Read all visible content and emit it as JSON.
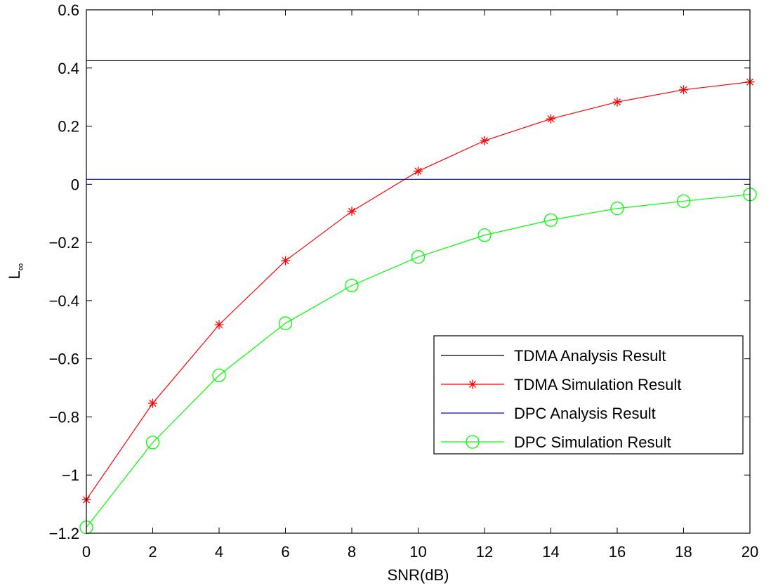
{
  "chart_data": {
    "type": "line",
    "title": "",
    "xlabel": "SNR(dB)",
    "ylabel": "L",
    "ylabel_subscript": "∞",
    "xlim": [
      0,
      20
    ],
    "ylim": [
      -1.2,
      0.6
    ],
    "xticks": [
      0,
      2,
      4,
      6,
      8,
      10,
      12,
      14,
      16,
      18,
      20
    ],
    "xtick_labels": [
      "0",
      "2",
      "4",
      "6",
      "8",
      "10",
      "12",
      "14",
      "16",
      "18",
      "20"
    ],
    "yticks": [
      -1.2,
      -1,
      -0.8,
      -0.6,
      -0.4,
      -0.2,
      0,
      0.2,
      0.4,
      0.6
    ],
    "ytick_labels": [
      "−1.2",
      "−1",
      "−0.8",
      "−0.6",
      "−0.4",
      "−0.2",
      "0",
      "0.2",
      "0.4",
      "0.6"
    ],
    "grid": false,
    "legend_position": "lower-right",
    "x": [
      0,
      2,
      4,
      6,
      8,
      10,
      12,
      14,
      16,
      18,
      20
    ],
    "series": [
      {
        "name": "TDMA Analysis Result",
        "color": "#000000",
        "marker": "none",
        "values": [
          0.425,
          0.425,
          0.425,
          0.425,
          0.425,
          0.425,
          0.425,
          0.425,
          0.425,
          0.425,
          0.425
        ]
      },
      {
        "name": "TDMA Simulation Result",
        "color": "#ff0000",
        "marker": "star",
        "values": [
          -1.085,
          -0.753,
          -0.483,
          -0.263,
          -0.093,
          0.045,
          0.15,
          0.225,
          0.283,
          0.325,
          0.352
        ]
      },
      {
        "name": "DPC Analysis Result",
        "color": "#0000ff",
        "marker": "none",
        "values": [
          0.017,
          0.017,
          0.017,
          0.017,
          0.017,
          0.017,
          0.017,
          0.017,
          0.017,
          0.017,
          0.017
        ]
      },
      {
        "name": "DPC Simulation Result",
        "color": "#00ff00",
        "marker": "circle",
        "values": [
          -1.18,
          -0.888,
          -0.657,
          -0.478,
          -0.348,
          -0.25,
          -0.175,
          -0.123,
          -0.083,
          -0.058,
          -0.035
        ]
      }
    ]
  }
}
